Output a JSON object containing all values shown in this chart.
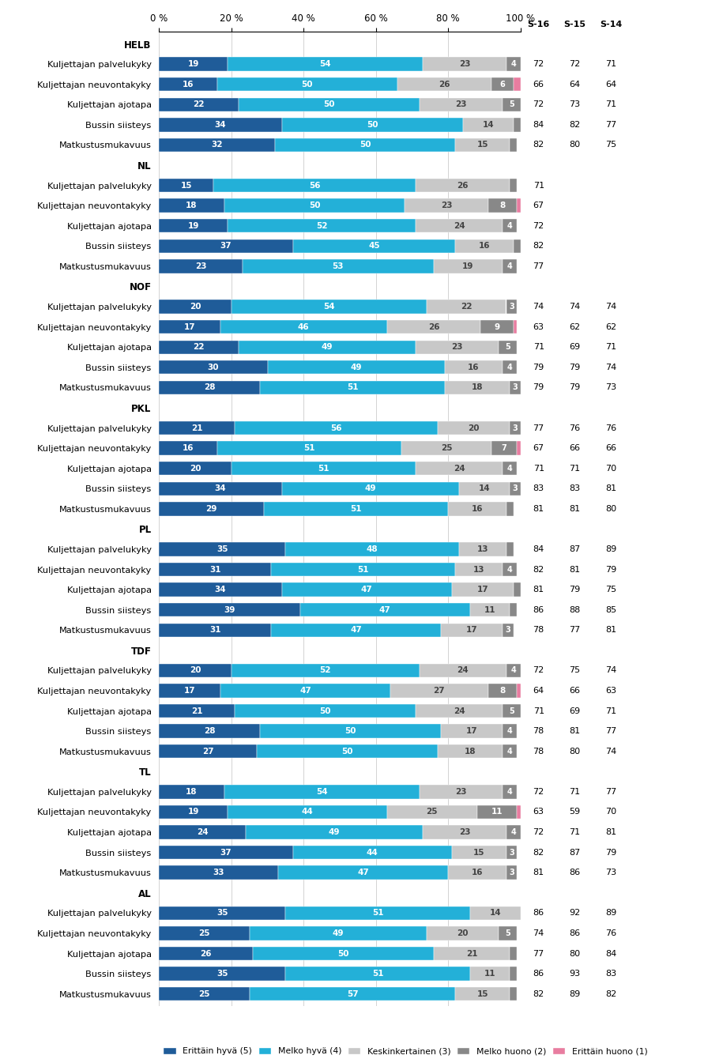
{
  "groups": [
    {
      "name": "HELB",
      "rows": [
        {
          "label": "Kuljettajan palvelukyky",
          "v5": 19,
          "v4": 54,
          "v3": 23,
          "v2": 4,
          "v1": 0,
          "scores": [
            72,
            72,
            71
          ]
        },
        {
          "label": "Kuljettajan neuvontakyky",
          "v5": 16,
          "v4": 50,
          "v3": 26,
          "v2": 6,
          "v1": 2,
          "scores": [
            66,
            64,
            64
          ]
        },
        {
          "label": "Kuljettajan ajotapa",
          "v5": 22,
          "v4": 50,
          "v3": 23,
          "v2": 5,
          "v1": 0,
          "scores": [
            72,
            73,
            71
          ]
        },
        {
          "label": "Bussin siisteys",
          "v5": 34,
          "v4": 50,
          "v3": 14,
          "v2": 2,
          "v1": 0,
          "scores": [
            84,
            82,
            77
          ]
        },
        {
          "label": "Matkustusmukavuus",
          "v5": 32,
          "v4": 50,
          "v3": 15,
          "v2": 2,
          "v1": 0,
          "scores": [
            82,
            80,
            75
          ]
        }
      ]
    },
    {
      "name": "NL",
      "rows": [
        {
          "label": "Kuljettajan palvelukyky",
          "v5": 15,
          "v4": 56,
          "v3": 26,
          "v2": 2,
          "v1": 0,
          "scores": [
            71,
            null,
            null
          ]
        },
        {
          "label": "Kuljettajan neuvontakyky",
          "v5": 18,
          "v4": 50,
          "v3": 23,
          "v2": 8,
          "v1": 1,
          "scores": [
            67,
            null,
            null
          ]
        },
        {
          "label": "Kuljettajan ajotapa",
          "v5": 19,
          "v4": 52,
          "v3": 24,
          "v2": 4,
          "v1": 0,
          "scores": [
            72,
            null,
            null
          ]
        },
        {
          "label": "Bussin siisteys",
          "v5": 37,
          "v4": 45,
          "v3": 16,
          "v2": 2,
          "v1": 0,
          "scores": [
            82,
            null,
            null
          ]
        },
        {
          "label": "Matkustusmukavuus",
          "v5": 23,
          "v4": 53,
          "v3": 19,
          "v2": 4,
          "v1": 0,
          "scores": [
            77,
            null,
            null
          ]
        }
      ]
    },
    {
      "name": "NOF",
      "rows": [
        {
          "label": "Kuljettajan palvelukyky",
          "v5": 20,
          "v4": 54,
          "v3": 22,
          "v2": 3,
          "v1": 0,
          "scores": [
            74,
            74,
            74
          ]
        },
        {
          "label": "Kuljettajan neuvontakyky",
          "v5": 17,
          "v4": 46,
          "v3": 26,
          "v2": 9,
          "v1": 1,
          "scores": [
            63,
            62,
            62
          ]
        },
        {
          "label": "Kuljettajan ajotapa",
          "v5": 22,
          "v4": 49,
          "v3": 23,
          "v2": 5,
          "v1": 0,
          "scores": [
            71,
            69,
            71
          ]
        },
        {
          "label": "Bussin siisteys",
          "v5": 30,
          "v4": 49,
          "v3": 16,
          "v2": 4,
          "v1": 0,
          "scores": [
            79,
            79,
            74
          ]
        },
        {
          "label": "Matkustusmukavuus",
          "v5": 28,
          "v4": 51,
          "v3": 18,
          "v2": 3,
          "v1": 0,
          "scores": [
            79,
            79,
            73
          ]
        }
      ]
    },
    {
      "name": "PKL",
      "rows": [
        {
          "label": "Kuljettajan palvelukyky",
          "v5": 21,
          "v4": 56,
          "v3": 20,
          "v2": 3,
          "v1": 0,
          "scores": [
            77,
            76,
            76
          ]
        },
        {
          "label": "Kuljettajan neuvontakyky",
          "v5": 16,
          "v4": 51,
          "v3": 25,
          "v2": 7,
          "v1": 1,
          "scores": [
            67,
            66,
            66
          ]
        },
        {
          "label": "Kuljettajan ajotapa",
          "v5": 20,
          "v4": 51,
          "v3": 24,
          "v2": 4,
          "v1": 0,
          "scores": [
            71,
            71,
            70
          ]
        },
        {
          "label": "Bussin siisteys",
          "v5": 34,
          "v4": 49,
          "v3": 14,
          "v2": 3,
          "v1": 0,
          "scores": [
            83,
            83,
            81
          ]
        },
        {
          "label": "Matkustusmukavuus",
          "v5": 29,
          "v4": 51,
          "v3": 16,
          "v2": 2,
          "v1": 0,
          "scores": [
            81,
            81,
            80
          ]
        }
      ]
    },
    {
      "name": "PL",
      "rows": [
        {
          "label": "Kuljettajan palvelukyky",
          "v5": 35,
          "v4": 48,
          "v3": 13,
          "v2": 2,
          "v1": 0,
          "scores": [
            84,
            87,
            89
          ]
        },
        {
          "label": "Kuljettajan neuvontakyky",
          "v5": 31,
          "v4": 51,
          "v3": 13,
          "v2": 4,
          "v1": 0,
          "scores": [
            82,
            81,
            79
          ]
        },
        {
          "label": "Kuljettajan ajotapa",
          "v5": 34,
          "v4": 47,
          "v3": 17,
          "v2": 2,
          "v1": 0,
          "scores": [
            81,
            79,
            75
          ]
        },
        {
          "label": "Bussin siisteys",
          "v5": 39,
          "v4": 47,
          "v3": 11,
          "v2": 2,
          "v1": 0,
          "scores": [
            86,
            88,
            85
          ]
        },
        {
          "label": "Matkustusmukavuus",
          "v5": 31,
          "v4": 47,
          "v3": 17,
          "v2": 3,
          "v1": 0,
          "scores": [
            78,
            77,
            81
          ]
        }
      ]
    },
    {
      "name": "TDF",
      "rows": [
        {
          "label": "Kuljettajan palvelukyky",
          "v5": 20,
          "v4": 52,
          "v3": 24,
          "v2": 4,
          "v1": 0,
          "scores": [
            72,
            75,
            74
          ]
        },
        {
          "label": "Kuljettajan neuvontakyky",
          "v5": 17,
          "v4": 47,
          "v3": 27,
          "v2": 8,
          "v1": 1,
          "scores": [
            64,
            66,
            63
          ]
        },
        {
          "label": "Kuljettajan ajotapa",
          "v5": 21,
          "v4": 50,
          "v3": 24,
          "v2": 5,
          "v1": 0,
          "scores": [
            71,
            69,
            71
          ]
        },
        {
          "label": "Bussin siisteys",
          "v5": 28,
          "v4": 50,
          "v3": 17,
          "v2": 4,
          "v1": 0,
          "scores": [
            78,
            81,
            77
          ]
        },
        {
          "label": "Matkustusmukavuus",
          "v5": 27,
          "v4": 50,
          "v3": 18,
          "v2": 4,
          "v1": 0,
          "scores": [
            78,
            80,
            74
          ]
        }
      ]
    },
    {
      "name": "TL",
      "rows": [
        {
          "label": "Kuljettajan palvelukyky",
          "v5": 18,
          "v4": 54,
          "v3": 23,
          "v2": 4,
          "v1": 0,
          "scores": [
            72,
            71,
            77
          ]
        },
        {
          "label": "Kuljettajan neuvontakyky",
          "v5": 19,
          "v4": 44,
          "v3": 25,
          "v2": 11,
          "v1": 1,
          "scores": [
            63,
            59,
            70
          ]
        },
        {
          "label": "Kuljettajan ajotapa",
          "v5": 24,
          "v4": 49,
          "v3": 23,
          "v2": 4,
          "v1": 0,
          "scores": [
            72,
            71,
            81
          ]
        },
        {
          "label": "Bussin siisteys",
          "v5": 37,
          "v4": 44,
          "v3": 15,
          "v2": 3,
          "v1": 0,
          "scores": [
            82,
            87,
            79
          ]
        },
        {
          "label": "Matkustusmukavuus",
          "v5": 33,
          "v4": 47,
          "v3": 16,
          "v2": 3,
          "v1": 0,
          "scores": [
            81,
            86,
            73
          ]
        }
      ]
    },
    {
      "name": "AL",
      "rows": [
        {
          "label": "Kuljettajan palvelukyky",
          "v5": 35,
          "v4": 51,
          "v3": 14,
          "v2": 0,
          "v1": 0,
          "scores": [
            86,
            92,
            89
          ]
        },
        {
          "label": "Kuljettajan neuvontakyky",
          "v5": 25,
          "v4": 49,
          "v3": 20,
          "v2": 5,
          "v1": 0,
          "scores": [
            74,
            86,
            76
          ]
        },
        {
          "label": "Kuljettajan ajotapa",
          "v5": 26,
          "v4": 50,
          "v3": 21,
          "v2": 2,
          "v1": 0,
          "scores": [
            77,
            80,
            84
          ]
        },
        {
          "label": "Bussin siisteys",
          "v5": 35,
          "v4": 51,
          "v3": 11,
          "v2": 2,
          "v1": 0,
          "scores": [
            86,
            93,
            83
          ]
        },
        {
          "label": "Matkustusmukavuus",
          "v5": 25,
          "v4": 57,
          "v3": 15,
          "v2": 2,
          "v1": 0,
          "scores": [
            82,
            89,
            82
          ]
        }
      ]
    }
  ],
  "colors": {
    "v5": "#1F5C99",
    "v4": "#23B0D8",
    "v3": "#C8C8C8",
    "v2": "#888888",
    "v1": "#E87DA0"
  },
  "legend_labels": [
    "Erittäin hyvä (5)",
    "Melko hyvä (4)",
    "Keskinkertainen (3)",
    "Melko huono (2)",
    "Erittäin huono (1)"
  ],
  "score_headers": [
    "S-16",
    "S-15",
    "S-14"
  ]
}
